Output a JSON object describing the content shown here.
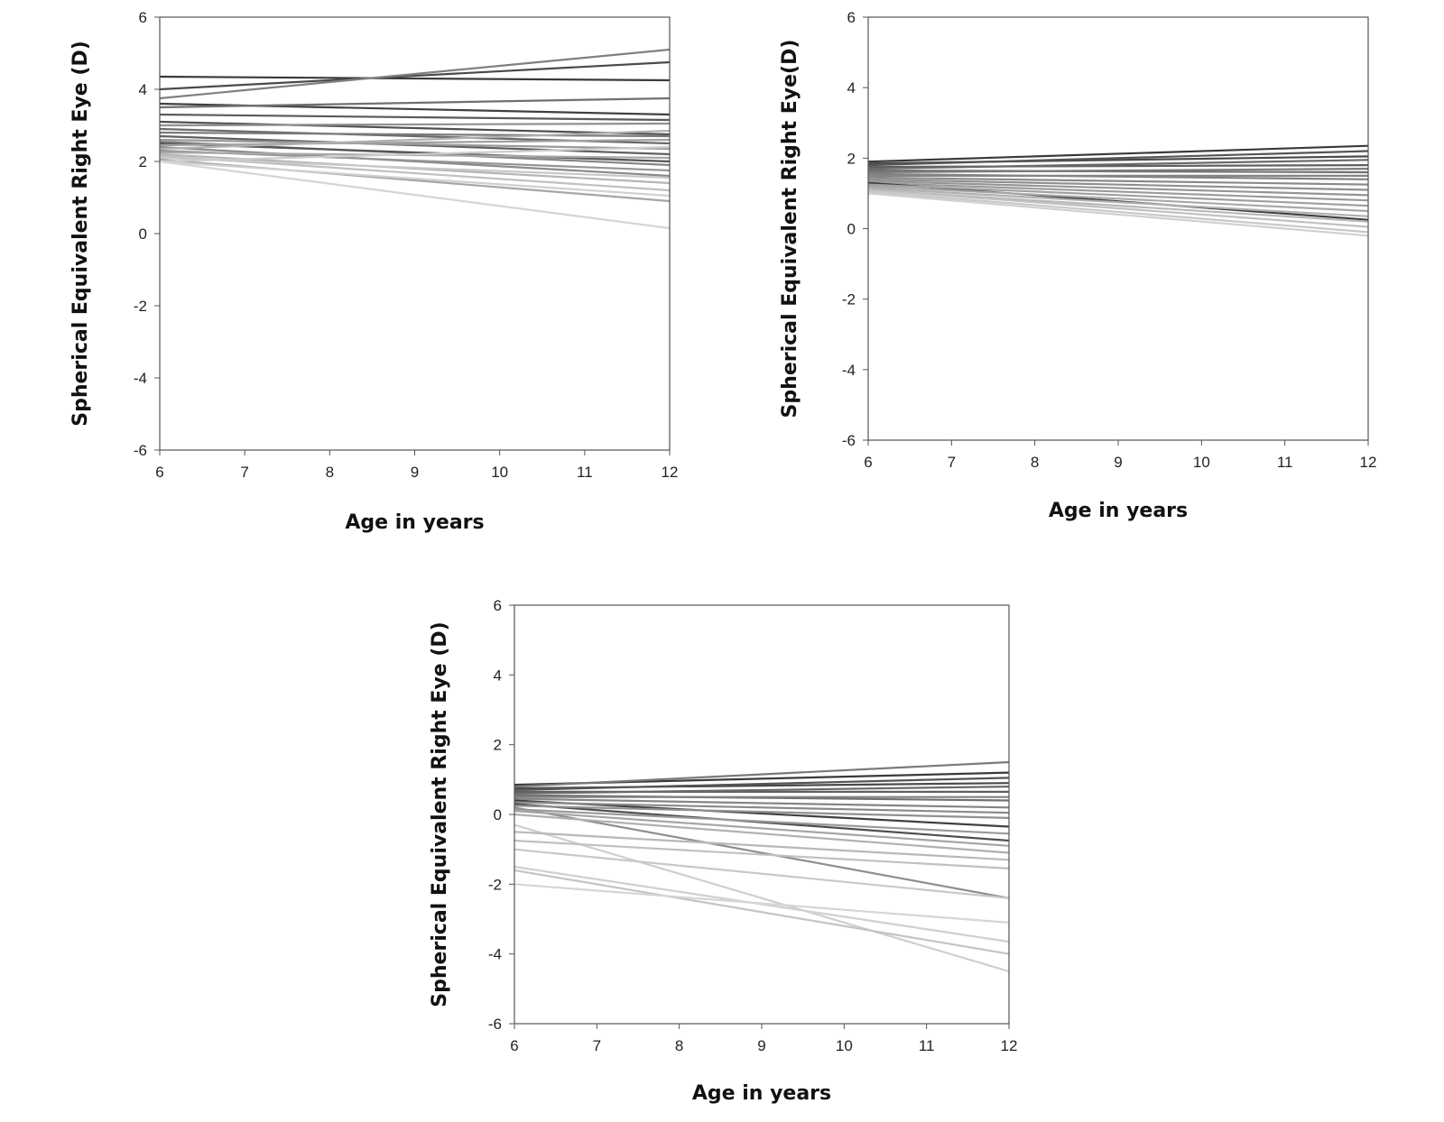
{
  "chart_data": [
    {
      "type": "line",
      "xlabel": "Age in years",
      "ylabel": "Spherical Equivalent Right Eye (D)",
      "xlim": [
        6,
        12
      ],
      "ylim": [
        -6,
        6
      ],
      "xticks": [
        "6",
        "7",
        "8",
        "9",
        "10",
        "11",
        "12"
      ],
      "yticks": [
        "6",
        "4",
        "2",
        "0",
        "-2",
        "-4",
        "-6"
      ],
      "grid": false,
      "legend": "none",
      "series": [
        {
          "x": [
            6,
            12
          ],
          "y": [
            4.35,
            4.25
          ],
          "color": "#3a3a3a"
        },
        {
          "x": [
            6,
            12
          ],
          "y": [
            4.0,
            4.75
          ],
          "color": "#4a4a4a"
        },
        {
          "x": [
            6,
            12
          ],
          "y": [
            3.75,
            5.1
          ],
          "color": "#808080"
        },
        {
          "x": [
            6,
            12
          ],
          "y": [
            3.6,
            3.3
          ],
          "color": "#404040"
        },
        {
          "x": [
            6,
            12
          ],
          "y": [
            3.5,
            3.75
          ],
          "color": "#707070"
        },
        {
          "x": [
            6,
            12
          ],
          "y": [
            3.3,
            3.15
          ],
          "color": "#5a5a5a"
        },
        {
          "x": [
            6,
            12
          ],
          "y": [
            3.1,
            2.75
          ],
          "color": "#505050"
        },
        {
          "x": [
            6,
            12
          ],
          "y": [
            3.0,
            3.05
          ],
          "color": "#909090"
        },
        {
          "x": [
            6,
            12
          ],
          "y": [
            2.9,
            2.5
          ],
          "color": "#6a6a6a"
        },
        {
          "x": [
            6,
            12
          ],
          "y": [
            2.8,
            2.7
          ],
          "color": "#7a7a7a"
        },
        {
          "x": [
            6,
            12
          ],
          "y": [
            2.7,
            2.2
          ],
          "color": "#606060"
        },
        {
          "x": [
            6,
            12
          ],
          "y": [
            2.6,
            2.35
          ],
          "color": "#9a9a9a"
        },
        {
          "x": [
            6,
            12
          ],
          "y": [
            2.55,
            1.9
          ],
          "color": "#858585"
        },
        {
          "x": [
            6,
            12
          ],
          "y": [
            2.5,
            2.0
          ],
          "color": "#555555"
        },
        {
          "x": [
            6,
            12
          ],
          "y": [
            2.45,
            2.6
          ],
          "color": "#a0a0a0"
        },
        {
          "x": [
            6,
            12
          ],
          "y": [
            2.4,
            1.6
          ],
          "color": "#8a8a8a"
        },
        {
          "x": [
            6,
            12
          ],
          "y": [
            2.35,
            2.85
          ],
          "color": "#b0b0b0"
        },
        {
          "x": [
            6,
            12
          ],
          "y": [
            2.3,
            1.75
          ],
          "color": "#959595"
        },
        {
          "x": [
            6,
            12
          ],
          "y": [
            2.25,
            2.1
          ],
          "color": "#a8a8a8"
        },
        {
          "x": [
            6,
            12
          ],
          "y": [
            2.2,
            1.4
          ],
          "color": "#b5b5b5"
        },
        {
          "x": [
            6,
            12
          ],
          "y": [
            2.15,
            1.2
          ],
          "color": "#c0c0c0"
        },
        {
          "x": [
            6,
            12
          ],
          "y": [
            2.1,
            1.55
          ],
          "color": "#c8c8c8"
        },
        {
          "x": [
            6,
            12
          ],
          "y": [
            2.05,
            0.9
          ],
          "color": "#a5a5a5"
        },
        {
          "x": [
            6,
            12
          ],
          "y": [
            2.0,
            2.4
          ],
          "color": "#cccccc"
        },
        {
          "x": [
            6,
            12
          ],
          "y": [
            2.0,
            1.05
          ],
          "color": "#d0d0d0"
        },
        {
          "x": [
            6,
            12
          ],
          "y": [
            2.0,
            0.15
          ],
          "color": "#d5d5d5"
        }
      ]
    },
    {
      "type": "line",
      "xlabel": "Age in years",
      "ylabel": "Spherical Equivalent Right Eye(D)",
      "xlim": [
        6,
        12
      ],
      "ylim": [
        -6,
        6
      ],
      "xticks": [
        "6",
        "7",
        "8",
        "9",
        "10",
        "11",
        "12"
      ],
      "yticks": [
        "6",
        "4",
        "2",
        "0",
        "-2",
        "-4",
        "-6"
      ],
      "grid": false,
      "legend": "none",
      "series": [
        {
          "x": [
            6,
            12
          ],
          "y": [
            1.9,
            2.35
          ],
          "color": "#3a3a3a"
        },
        {
          "x": [
            6,
            12
          ],
          "y": [
            1.85,
            2.05
          ],
          "color": "#4a4a4a"
        },
        {
          "x": [
            6,
            12
          ],
          "y": [
            1.8,
            2.2
          ],
          "color": "#555555"
        },
        {
          "x": [
            6,
            12
          ],
          "y": [
            1.75,
            1.8
          ],
          "color": "#606060"
        },
        {
          "x": [
            6,
            12
          ],
          "y": [
            1.7,
            1.95
          ],
          "color": "#6a6a6a"
        },
        {
          "x": [
            6,
            12
          ],
          "y": [
            1.65,
            1.6
          ],
          "color": "#707070"
        },
        {
          "x": [
            6,
            12
          ],
          "y": [
            1.6,
            1.7
          ],
          "color": "#7a7a7a"
        },
        {
          "x": [
            6,
            12
          ],
          "y": [
            1.55,
            1.4
          ],
          "color": "#808080"
        },
        {
          "x": [
            6,
            12
          ],
          "y": [
            1.5,
            1.5
          ],
          "color": "#858585"
        },
        {
          "x": [
            6,
            12
          ],
          "y": [
            1.45,
            1.25
          ],
          "color": "#8a8a8a"
        },
        {
          "x": [
            6,
            12
          ],
          "y": [
            1.4,
            1.1
          ],
          "color": "#909090"
        },
        {
          "x": [
            6,
            12
          ],
          "y": [
            1.35,
            0.95
          ],
          "color": "#959595"
        },
        {
          "x": [
            6,
            12
          ],
          "y": [
            1.3,
            0.8
          ],
          "color": "#9a9a9a"
        },
        {
          "x": [
            6,
            12
          ],
          "y": [
            1.3,
            0.25
          ],
          "color": "#404040"
        },
        {
          "x": [
            6,
            12
          ],
          "y": [
            1.25,
            0.65
          ],
          "color": "#a0a0a0"
        },
        {
          "x": [
            6,
            12
          ],
          "y": [
            1.2,
            0.5
          ],
          "color": "#a8a8a8"
        },
        {
          "x": [
            6,
            12
          ],
          "y": [
            1.15,
            0.35
          ],
          "color": "#b0b0b0"
        },
        {
          "x": [
            6,
            12
          ],
          "y": [
            1.1,
            0.2
          ],
          "color": "#b8b8b8"
        },
        {
          "x": [
            6,
            12
          ],
          "y": [
            1.1,
            0.05
          ],
          "color": "#c0c0c0"
        },
        {
          "x": [
            6,
            12
          ],
          "y": [
            1.05,
            -0.1
          ],
          "color": "#c8c8c8"
        },
        {
          "x": [
            6,
            12
          ],
          "y": [
            1.0,
            -0.2
          ],
          "color": "#d0d0d0"
        }
      ]
    },
    {
      "type": "line",
      "xlabel": "Age in years",
      "ylabel": "Spherical Equivalent Right Eye (D)",
      "xlim": [
        6,
        12
      ],
      "ylim": [
        -6,
        6
      ],
      "xticks": [
        "6",
        "7",
        "8",
        "9",
        "10",
        "11",
        "12"
      ],
      "yticks": [
        "6",
        "4",
        "2",
        "0",
        "-2",
        "-4",
        "-6"
      ],
      "grid": false,
      "legend": "none",
      "series": [
        {
          "x": [
            6,
            12
          ],
          "y": [
            0.85,
            1.2
          ],
          "color": "#3a3a3a"
        },
        {
          "x": [
            6,
            12
          ],
          "y": [
            0.8,
            1.5
          ],
          "color": "#7a7a7a"
        },
        {
          "x": [
            6,
            12
          ],
          "y": [
            0.75,
            0.9
          ],
          "color": "#4a4a4a"
        },
        {
          "x": [
            6,
            12
          ],
          "y": [
            0.7,
            1.05
          ],
          "color": "#555555"
        },
        {
          "x": [
            6,
            12
          ],
          "y": [
            0.65,
            0.65
          ],
          "color": "#606060"
        },
        {
          "x": [
            6,
            12
          ],
          "y": [
            0.6,
            0.8
          ],
          "color": "#6a6a6a"
        },
        {
          "x": [
            6,
            12
          ],
          "y": [
            0.55,
            0.4
          ],
          "color": "#707070"
        },
        {
          "x": [
            6,
            12
          ],
          "y": [
            0.5,
            0.5
          ],
          "color": "#808080"
        },
        {
          "x": [
            6,
            12
          ],
          "y": [
            0.45,
            0.2
          ],
          "color": "#858585"
        },
        {
          "x": [
            6,
            12
          ],
          "y": [
            0.4,
            -0.35
          ],
          "color": "#404040"
        },
        {
          "x": [
            6,
            12
          ],
          "y": [
            0.35,
            0.05
          ],
          "color": "#8a8a8a"
        },
        {
          "x": [
            6,
            12
          ],
          "y": [
            0.3,
            -0.75
          ],
          "color": "#4f4f4f"
        },
        {
          "x": [
            6,
            12
          ],
          "y": [
            0.25,
            -0.1
          ],
          "color": "#909090"
        },
        {
          "x": [
            6,
            12
          ],
          "y": [
            0.2,
            -2.4
          ],
          "color": "#8f8f8f"
        },
        {
          "x": [
            6,
            12
          ],
          "y": [
            0.15,
            -0.55
          ],
          "color": "#9a9a9a"
        },
        {
          "x": [
            6,
            12
          ],
          "y": [
            0.1,
            -0.9
          ],
          "color": "#a5a5a5"
        },
        {
          "x": [
            6,
            12
          ],
          "y": [
            0.0,
            -1.1
          ],
          "color": "#b0b0b0"
        },
        {
          "x": [
            6,
            12
          ],
          "y": [
            -0.3,
            -4.5
          ],
          "color": "#cfcfcf"
        },
        {
          "x": [
            6,
            12
          ],
          "y": [
            -0.5,
            -1.3
          ],
          "color": "#b8b8b8"
        },
        {
          "x": [
            6,
            12
          ],
          "y": [
            -0.75,
            -1.55
          ],
          "color": "#c0c0c0"
        },
        {
          "x": [
            6,
            12
          ],
          "y": [
            -1.0,
            -2.4
          ],
          "color": "#c8c8c8"
        },
        {
          "x": [
            6,
            12
          ],
          "y": [
            -1.5,
            -3.65
          ],
          "color": "#d0d0d0"
        },
        {
          "x": [
            6,
            12
          ],
          "y": [
            -1.6,
            -4.0
          ],
          "color": "#c4c4c4"
        },
        {
          "x": [
            6,
            12
          ],
          "y": [
            -2.0,
            -3.1
          ],
          "color": "#d5d5d5"
        }
      ]
    }
  ]
}
